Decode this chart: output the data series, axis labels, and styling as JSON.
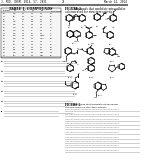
{
  "background_color": "#ffffff",
  "header_left": "J. MED. CHEM. 2014, 57, 2831",
  "header_right": "March 14, 2014",
  "page_num": "21",
  "figure_label": "FIGURE 2.",
  "figure_caption": "Compounds that modulate intracellular calcium used for structure-activity.",
  "table_title": "TABLE 1. COMPOUNDS",
  "lw": 0.5,
  "gray_text": "#888888",
  "dark_text": "#222222",
  "line_color": "#000000"
}
